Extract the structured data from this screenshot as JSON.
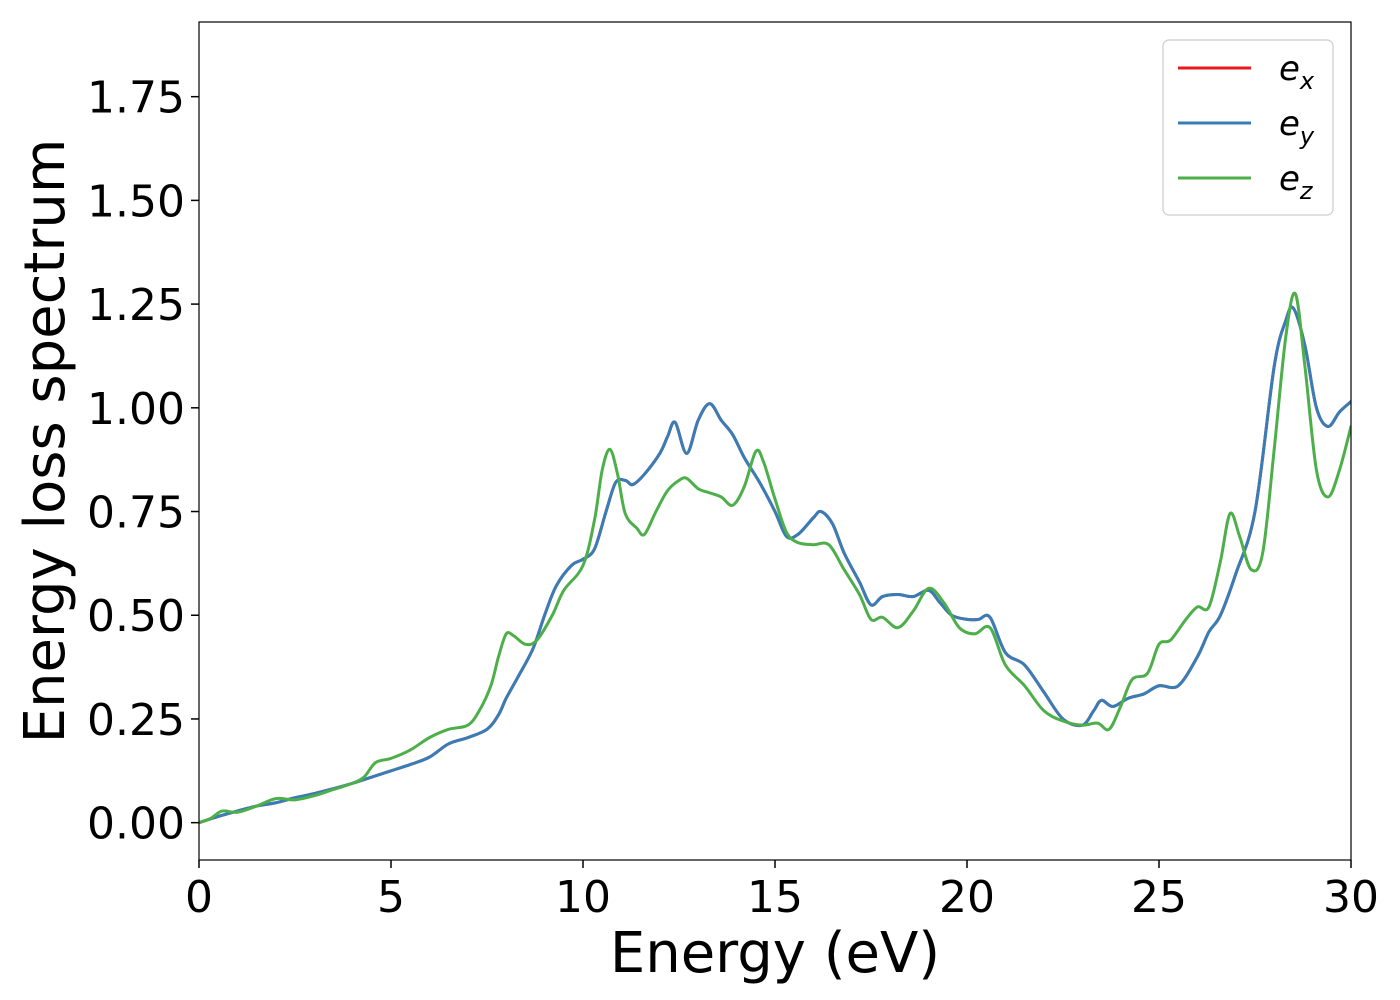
{
  "chart_data": {
    "type": "line",
    "title": "",
    "xlabel": "Energy (eV)",
    "ylabel": "Energy loss spectrum",
    "xlim": [
      0,
      30
    ],
    "ylim": [
      -0.09,
      1.93
    ],
    "xticks": [
      0,
      5,
      10,
      15,
      20,
      25,
      30
    ],
    "xtick_labels": [
      "0",
      "5",
      "10",
      "15",
      "20",
      "25",
      "30"
    ],
    "yticks": [
      0.0,
      0.25,
      0.5,
      0.75,
      1.0,
      1.25,
      1.5,
      1.75
    ],
    "ytick_labels": [
      "0.00",
      "0.25",
      "0.50",
      "0.75",
      "1.00",
      "1.25",
      "1.50",
      "1.75"
    ],
    "grid": false,
    "legend_position": "top-right",
    "series": [
      {
        "name": "e_x",
        "legend": {
          "base": "e",
          "sub": "x"
        },
        "color": "#e41a1c",
        "points": [
          [
            0,
            0.0
          ],
          [
            0.5,
            0.015
          ],
          [
            1,
            0.028
          ],
          [
            1.5,
            0.04
          ],
          [
            2,
            0.048
          ],
          [
            2.5,
            0.06
          ],
          [
            3,
            0.07
          ],
          [
            3.5,
            0.082
          ],
          [
            4,
            0.095
          ],
          [
            4.5,
            0.11
          ],
          [
            5,
            0.125
          ],
          [
            5.5,
            0.14
          ],
          [
            6,
            0.158
          ],
          [
            6.5,
            0.19
          ],
          [
            7,
            0.205
          ],
          [
            7.5,
            0.225
          ],
          [
            7.8,
            0.26
          ],
          [
            8,
            0.3
          ],
          [
            8.3,
            0.35
          ],
          [
            8.7,
            0.42
          ],
          [
            9,
            0.5
          ],
          [
            9.3,
            0.57
          ],
          [
            9.7,
            0.62
          ],
          [
            10,
            0.635
          ],
          [
            10.3,
            0.66
          ],
          [
            10.6,
            0.75
          ],
          [
            10.85,
            0.82
          ],
          [
            11.1,
            0.825
          ],
          [
            11.3,
            0.815
          ],
          [
            11.6,
            0.84
          ],
          [
            12,
            0.89
          ],
          [
            12.2,
            0.93
          ],
          [
            12.4,
            0.965
          ],
          [
            12.7,
            0.89
          ],
          [
            13,
            0.97
          ],
          [
            13.3,
            1.01
          ],
          [
            13.6,
            0.97
          ],
          [
            13.9,
            0.935
          ],
          [
            14.2,
            0.88
          ],
          [
            14.6,
            0.82
          ],
          [
            15,
            0.75
          ],
          [
            15.3,
            0.69
          ],
          [
            15.6,
            0.695
          ],
          [
            16,
            0.735
          ],
          [
            16.2,
            0.75
          ],
          [
            16.5,
            0.72
          ],
          [
            16.8,
            0.65
          ],
          [
            17.2,
            0.58
          ],
          [
            17.5,
            0.525
          ],
          [
            17.8,
            0.545
          ],
          [
            18.2,
            0.55
          ],
          [
            18.6,
            0.545
          ],
          [
            19,
            0.56
          ],
          [
            19.3,
            0.53
          ],
          [
            19.6,
            0.5
          ],
          [
            20,
            0.49
          ],
          [
            20.3,
            0.49
          ],
          [
            20.6,
            0.495
          ],
          [
            21,
            0.41
          ],
          [
            21.5,
            0.38
          ],
          [
            22,
            0.315
          ],
          [
            22.5,
            0.25
          ],
          [
            23,
            0.235
          ],
          [
            23.3,
            0.27
          ],
          [
            23.5,
            0.295
          ],
          [
            23.8,
            0.28
          ],
          [
            24.2,
            0.3
          ],
          [
            24.6,
            0.31
          ],
          [
            25,
            0.33
          ],
          [
            25.5,
            0.33
          ],
          [
            26,
            0.4
          ],
          [
            26.3,
            0.46
          ],
          [
            26.6,
            0.5
          ],
          [
            27,
            0.6
          ],
          [
            27.5,
            0.75
          ],
          [
            28,
            1.1
          ],
          [
            28.3,
            1.21
          ],
          [
            28.5,
            1.24
          ],
          [
            28.8,
            1.15
          ],
          [
            29.1,
            1.0
          ],
          [
            29.4,
            0.955
          ],
          [
            29.7,
            0.99
          ],
          [
            30,
            1.015
          ]
        ]
      },
      {
        "name": "e_y",
        "legend": {
          "base": "e",
          "sub": "y"
        },
        "color": "#377eb8",
        "points": [
          [
            0,
            0.0
          ],
          [
            0.5,
            0.015
          ],
          [
            1,
            0.028
          ],
          [
            1.5,
            0.04
          ],
          [
            2,
            0.048
          ],
          [
            2.5,
            0.06
          ],
          [
            3,
            0.07
          ],
          [
            3.5,
            0.082
          ],
          [
            4,
            0.095
          ],
          [
            4.5,
            0.11
          ],
          [
            5,
            0.125
          ],
          [
            5.5,
            0.14
          ],
          [
            6,
            0.158
          ],
          [
            6.5,
            0.19
          ],
          [
            7,
            0.205
          ],
          [
            7.5,
            0.225
          ],
          [
            7.8,
            0.26
          ],
          [
            8,
            0.3
          ],
          [
            8.3,
            0.35
          ],
          [
            8.7,
            0.42
          ],
          [
            9,
            0.5
          ],
          [
            9.3,
            0.57
          ],
          [
            9.7,
            0.62
          ],
          [
            10,
            0.635
          ],
          [
            10.3,
            0.66
          ],
          [
            10.6,
            0.75
          ],
          [
            10.85,
            0.82
          ],
          [
            11.1,
            0.825
          ],
          [
            11.3,
            0.815
          ],
          [
            11.6,
            0.84
          ],
          [
            12,
            0.89
          ],
          [
            12.2,
            0.93
          ],
          [
            12.4,
            0.965
          ],
          [
            12.7,
            0.89
          ],
          [
            13,
            0.97
          ],
          [
            13.3,
            1.01
          ],
          [
            13.6,
            0.97
          ],
          [
            13.9,
            0.935
          ],
          [
            14.2,
            0.88
          ],
          [
            14.6,
            0.82
          ],
          [
            15,
            0.75
          ],
          [
            15.3,
            0.69
          ],
          [
            15.6,
            0.695
          ],
          [
            16,
            0.735
          ],
          [
            16.2,
            0.75
          ],
          [
            16.5,
            0.72
          ],
          [
            16.8,
            0.65
          ],
          [
            17.2,
            0.58
          ],
          [
            17.5,
            0.525
          ],
          [
            17.8,
            0.545
          ],
          [
            18.2,
            0.55
          ],
          [
            18.6,
            0.545
          ],
          [
            19,
            0.56
          ],
          [
            19.3,
            0.53
          ],
          [
            19.6,
            0.5
          ],
          [
            20,
            0.49
          ],
          [
            20.3,
            0.49
          ],
          [
            20.6,
            0.495
          ],
          [
            21,
            0.41
          ],
          [
            21.5,
            0.38
          ],
          [
            22,
            0.315
          ],
          [
            22.5,
            0.25
          ],
          [
            23,
            0.235
          ],
          [
            23.3,
            0.27
          ],
          [
            23.5,
            0.295
          ],
          [
            23.8,
            0.28
          ],
          [
            24.2,
            0.3
          ],
          [
            24.6,
            0.31
          ],
          [
            25,
            0.33
          ],
          [
            25.5,
            0.33
          ],
          [
            26,
            0.4
          ],
          [
            26.3,
            0.46
          ],
          [
            26.6,
            0.5
          ],
          [
            27,
            0.6
          ],
          [
            27.5,
            0.75
          ],
          [
            28,
            1.1
          ],
          [
            28.3,
            1.21
          ],
          [
            28.5,
            1.24
          ],
          [
            28.8,
            1.15
          ],
          [
            29.1,
            1.0
          ],
          [
            29.4,
            0.955
          ],
          [
            29.7,
            0.99
          ],
          [
            30,
            1.015
          ]
        ]
      },
      {
        "name": "e_z",
        "legend": {
          "base": "e",
          "sub": "z"
        },
        "color": "#4daf4a",
        "points": [
          [
            0,
            0.0
          ],
          [
            0.3,
            0.01
          ],
          [
            0.6,
            0.028
          ],
          [
            1,
            0.025
          ],
          [
            1.5,
            0.04
          ],
          [
            2,
            0.058
          ],
          [
            2.5,
            0.055
          ],
          [
            3,
            0.065
          ],
          [
            3.5,
            0.08
          ],
          [
            4,
            0.095
          ],
          [
            4.3,
            0.11
          ],
          [
            4.6,
            0.145
          ],
          [
            5,
            0.155
          ],
          [
            5.5,
            0.175
          ],
          [
            6,
            0.205
          ],
          [
            6.5,
            0.225
          ],
          [
            7,
            0.235
          ],
          [
            7.3,
            0.27
          ],
          [
            7.6,
            0.33
          ],
          [
            7.8,
            0.4
          ],
          [
            8,
            0.455
          ],
          [
            8.2,
            0.45
          ],
          [
            8.5,
            0.43
          ],
          [
            8.8,
            0.44
          ],
          [
            9.2,
            0.5
          ],
          [
            9.5,
            0.56
          ],
          [
            10,
            0.62
          ],
          [
            10.3,
            0.73
          ],
          [
            10.5,
            0.85
          ],
          [
            10.7,
            0.9
          ],
          [
            10.9,
            0.84
          ],
          [
            11.1,
            0.745
          ],
          [
            11.4,
            0.71
          ],
          [
            11.6,
            0.695
          ],
          [
            11.9,
            0.75
          ],
          [
            12.2,
            0.8
          ],
          [
            12.5,
            0.825
          ],
          [
            12.7,
            0.83
          ],
          [
            13,
            0.805
          ],
          [
            13.3,
            0.795
          ],
          [
            13.6,
            0.785
          ],
          [
            13.9,
            0.765
          ],
          [
            14.2,
            0.81
          ],
          [
            14.5,
            0.895
          ],
          [
            14.7,
            0.87
          ],
          [
            15,
            0.78
          ],
          [
            15.3,
            0.7
          ],
          [
            15.6,
            0.675
          ],
          [
            16,
            0.67
          ],
          [
            16.4,
            0.67
          ],
          [
            16.8,
            0.61
          ],
          [
            17.2,
            0.55
          ],
          [
            17.5,
            0.49
          ],
          [
            17.8,
            0.495
          ],
          [
            18.2,
            0.47
          ],
          [
            18.6,
            0.51
          ],
          [
            19,
            0.565
          ],
          [
            19.4,
            0.53
          ],
          [
            19.8,
            0.47
          ],
          [
            20.2,
            0.455
          ],
          [
            20.6,
            0.47
          ],
          [
            21,
            0.38
          ],
          [
            21.5,
            0.33
          ],
          [
            22,
            0.27
          ],
          [
            22.5,
            0.245
          ],
          [
            23,
            0.235
          ],
          [
            23.4,
            0.24
          ],
          [
            23.7,
            0.225
          ],
          [
            24,
            0.28
          ],
          [
            24.3,
            0.345
          ],
          [
            24.7,
            0.36
          ],
          [
            25,
            0.43
          ],
          [
            25.3,
            0.44
          ],
          [
            25.7,
            0.49
          ],
          [
            26,
            0.52
          ],
          [
            26.3,
            0.52
          ],
          [
            26.6,
            0.63
          ],
          [
            26.85,
            0.745
          ],
          [
            27.1,
            0.69
          ],
          [
            27.4,
            0.61
          ],
          [
            27.7,
            0.65
          ],
          [
            28,
            0.9
          ],
          [
            28.3,
            1.17
          ],
          [
            28.55,
            1.275
          ],
          [
            28.8,
            1.1
          ],
          [
            29.1,
            0.85
          ],
          [
            29.4,
            0.785
          ],
          [
            29.7,
            0.85
          ],
          [
            30,
            0.955
          ]
        ]
      }
    ]
  }
}
